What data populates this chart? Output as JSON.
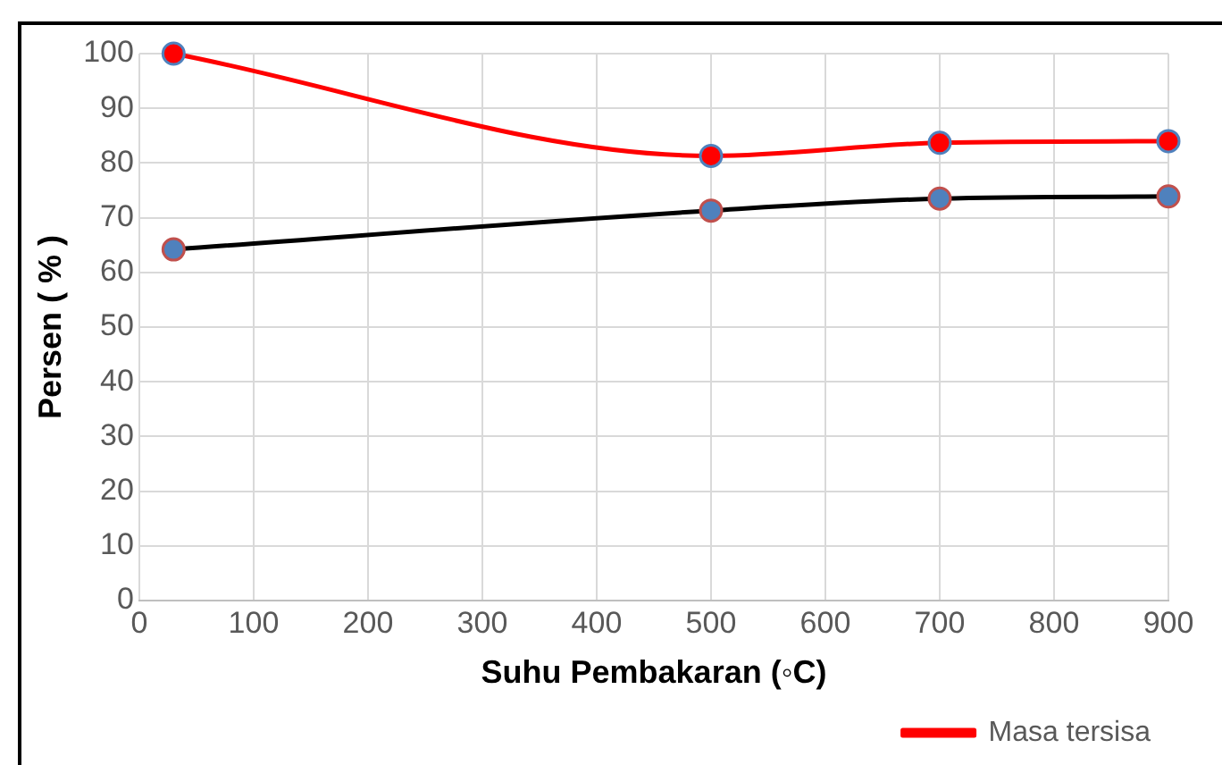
{
  "chart_data": {
    "type": "line",
    "xlabel": "Suhu Pembakaran (◦C)",
    "ylabel": "Persen ( % )",
    "xlim": [
      0,
      900
    ],
    "xticks": [
      0,
      100,
      200,
      300,
      400,
      500,
      600,
      700,
      800,
      900
    ],
    "ylim": [
      0,
      100
    ],
    "yticks": [
      0,
      10,
      20,
      30,
      40,
      50,
      60,
      70,
      80,
      90,
      100
    ],
    "grid": true,
    "legend": "bottom",
    "marker": "circle",
    "series": [
      {
        "name": "Masa tersisa",
        "color": "#ff0000",
        "x": [
          30,
          500,
          700,
          900
        ],
        "values": [
          100,
          81.3,
          83.7,
          84
        ]
      },
      {
        "color": "#000000",
        "x": [
          30,
          500,
          700,
          900
        ],
        "values": [
          64.2,
          71.3,
          73.5,
          73.9
        ]
      }
    ]
  }
}
